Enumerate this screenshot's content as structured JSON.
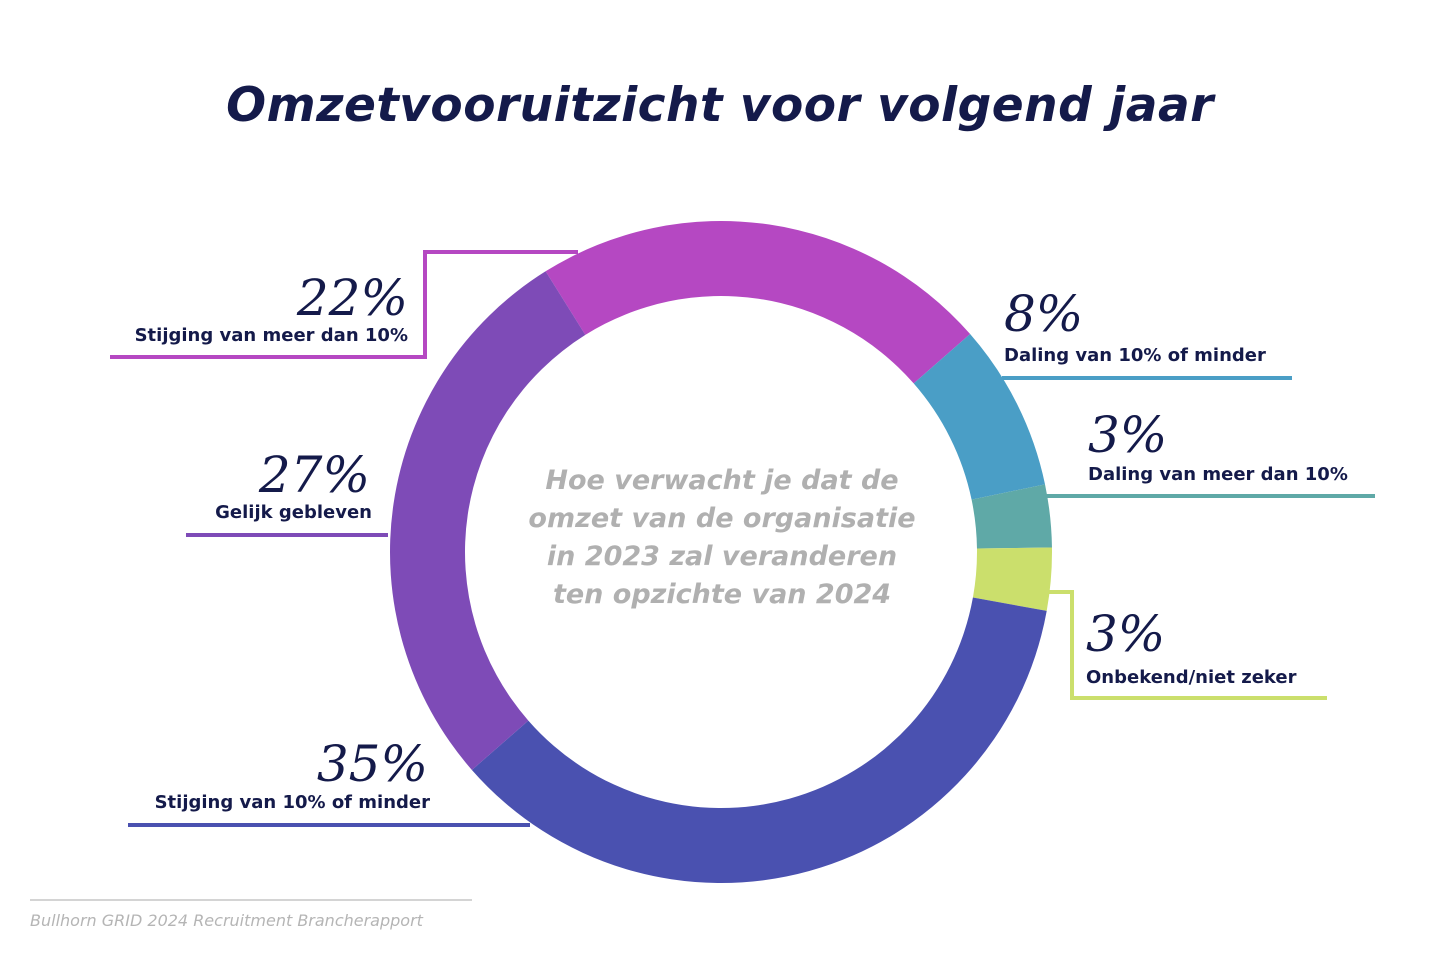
{
  "title": "Omzetvooruitzicht voor volgend jaar",
  "center_question": "Hoe verwacht je dat de omzet van de organisatie in 2023 zal veranderen ten opzichte van 2024",
  "source": "Bullhorn GRID 2024 Recruitment Brancherapport",
  "chart_data": {
    "type": "pie",
    "title": "Omzetvooruitzicht voor volgend jaar",
    "donut": true,
    "unit": "%",
    "slices": [
      {
        "label": "Stijging van meer dan 10%",
        "display": "22%",
        "value": 22,
        "color": "#b548c2"
      },
      {
        "label": "Daling van 10% of minder",
        "display": "8%",
        "value": 8,
        "color": "#4a9ec6"
      },
      {
        "label": "Daling van meer dan 10%",
        "display": "3%",
        "value": 3,
        "color": "#5fa9a7"
      },
      {
        "label": "Onbekend/niet zeker",
        "display": "3%",
        "value": 3,
        "color": "#cbdf6c"
      },
      {
        "label": "Stijging van 10% of minder",
        "display": "35%",
        "value": 35,
        "color": "#4a51b0"
      },
      {
        "label": "Gelijk gebleven",
        "display": "27%",
        "value": 27,
        "color": "#7e4bb7"
      }
    ]
  }
}
